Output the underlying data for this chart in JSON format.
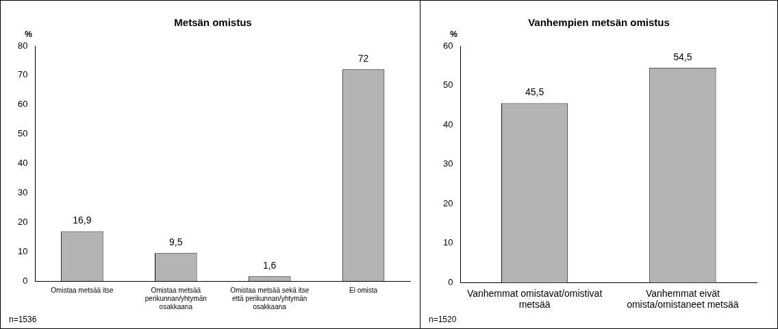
{
  "chart_data": [
    {
      "type": "bar",
      "title": "Metsän omistus",
      "ylabel": "%",
      "categories": [
        "Omistaa metsää itse",
        "Omistaa metsää perikunnan/yhtymän osakkaana",
        "Omistaa metsää sekä itse että perikunnan/yhtymän osakkaana",
        "Ei omista"
      ],
      "values": [
        16.9,
        9.5,
        1.6,
        72
      ],
      "value_labels": [
        "16,9",
        "9,5",
        "1,6",
        "72"
      ],
      "color": "#b4b4b4",
      "ylim": [
        0,
        80
      ],
      "yticks": [
        0,
        10,
        20,
        30,
        40,
        50,
        60,
        70,
        80
      ],
      "grid": false,
      "legend": false,
      "annotations": [
        "n=1536"
      ]
    },
    {
      "type": "bar",
      "title": "Vanhempien metsän omistus",
      "ylabel": "%",
      "categories": [
        "Vanhemmat omistavat/omistivat metsää",
        "Vanhemmat eivät omista/omistaneet metsää"
      ],
      "values": [
        45.5,
        54.5
      ],
      "value_labels": [
        "45,5",
        "54,5"
      ],
      "color": "#b4b4b4",
      "ylim": [
        0,
        60
      ],
      "yticks": [
        0,
        10,
        20,
        30,
        40,
        50,
        60
      ],
      "grid": false,
      "legend": false,
      "annotations": [
        "n=1520"
      ]
    }
  ]
}
